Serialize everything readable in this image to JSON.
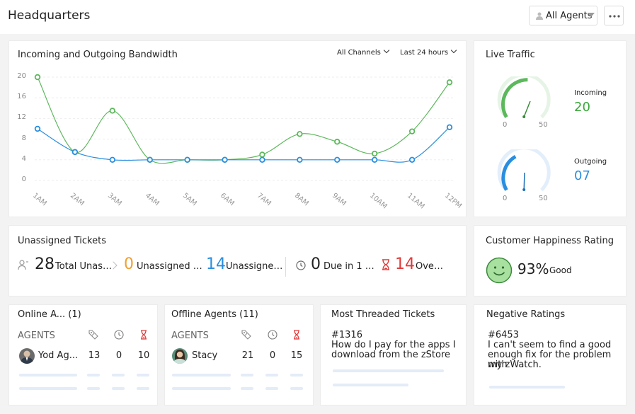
{
  "header": {
    "title": "Headquarters",
    "agents_filter": "All Agents"
  },
  "bandwidth": {
    "title": "Incoming and Outgoing Bandwidth",
    "channel_filter": "All Channels",
    "time_filter": "Last 24 hours",
    "colors": {
      "incoming": "#5cb85c",
      "outgoing": "#2a8ee0"
    }
  },
  "chart_data": {
    "type": "line",
    "x": [
      "1AM",
      "2AM",
      "3AM",
      "4AM",
      "5AM",
      "6AM",
      "7AM",
      "8AM",
      "9AM",
      "10AM",
      "11AM",
      "12PM"
    ],
    "yticks": [
      0,
      4,
      8,
      12,
      16,
      20
    ],
    "ylim": [
      0,
      20
    ],
    "series": [
      {
        "values": [
          20,
          5.5,
          13.5,
          4,
          4,
          4,
          5,
          9,
          7.5,
          5.2,
          9.5,
          19
        ],
        "color": "#5cb85c"
      },
      {
        "values": [
          10,
          5.5,
          4,
          4,
          4,
          4,
          4,
          4,
          4,
          4,
          4,
          10.3
        ],
        "color": "#2a8ee0"
      }
    ]
  },
  "live_traffic": {
    "title": "Live Traffic",
    "incoming": {
      "label": "Incoming",
      "value": "20",
      "min": "0",
      "max": "50",
      "color": "#3aa83a"
    },
    "outgoing": {
      "label": "Outgoing",
      "value": "07",
      "min": "0",
      "max": "50",
      "color": "#2a8ee0"
    }
  },
  "unassigned": {
    "title": "Unassigned Tickets",
    "items": [
      {
        "value": "28",
        "label": "Total Unassi…",
        "color": "#222222"
      },
      {
        "value": "0",
        "label": "Unassigned On…",
        "color": "#f0a030"
      },
      {
        "value": "14",
        "label": "Unassigned…",
        "color": "#2a8ee0"
      },
      {
        "value": "0",
        "label": "Due in 1 …",
        "color": "#222222"
      },
      {
        "value": "14",
        "label": "Over…",
        "color": "#e03a3a"
      }
    ]
  },
  "happiness": {
    "title": "Customer Happiness Rating",
    "value": "93%",
    "label": "Good"
  },
  "online_agents": {
    "title": "Online A... (1)",
    "header": "AGENTS",
    "row": {
      "name": "Yod Ag...",
      "open": "13",
      "on_hold": "0",
      "overdue": "10"
    }
  },
  "offline_agents": {
    "title": "Offline Agents (11)",
    "header": "AGENTS",
    "row": {
      "name": "Stacy",
      "open": "21",
      "on_hold": "0",
      "overdue": "15"
    }
  },
  "threaded": {
    "title": "Most Threaded Tickets",
    "id": "#1316",
    "lines": [
      "How do I pay for the apps I",
      "download from the zStore"
    ]
  },
  "negative": {
    "title": "Negative Ratings",
    "id": "#6453",
    "lines": [
      "I can't seem to find a good",
      "enough fix for the problem with",
      "my zWatch."
    ]
  }
}
